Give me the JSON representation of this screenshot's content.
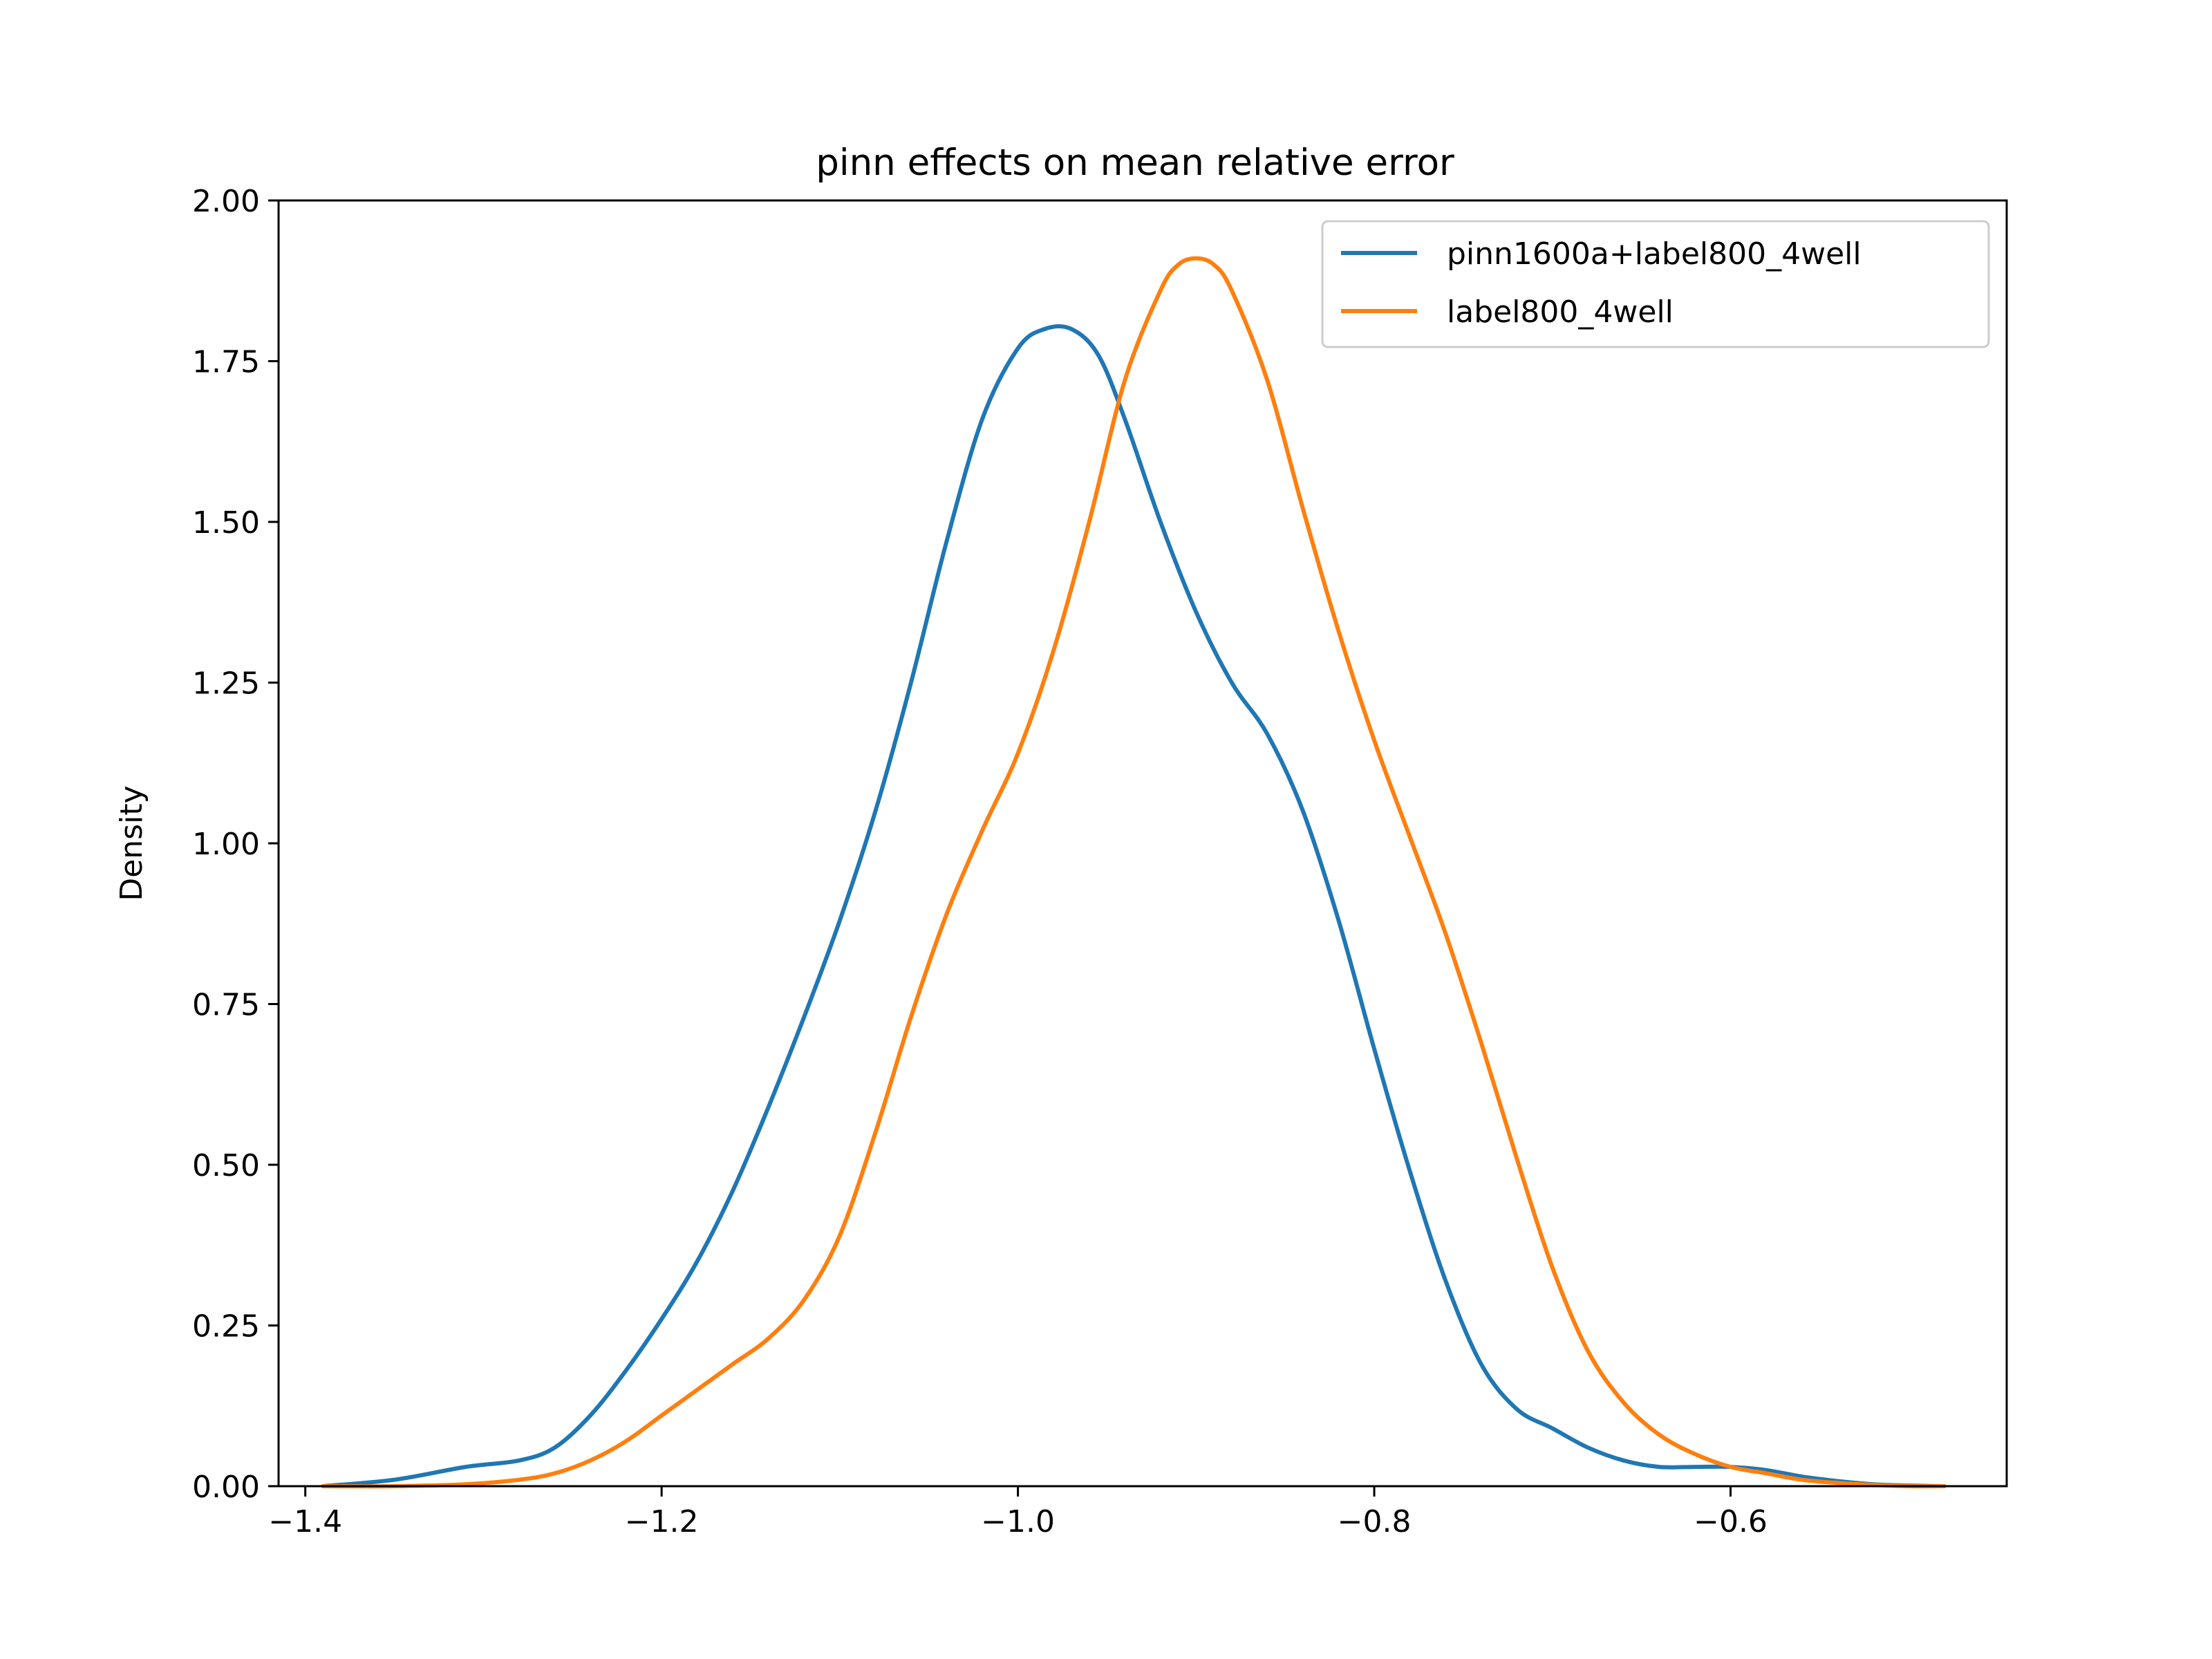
{
  "chart_data": {
    "type": "line",
    "title": "pinn effects on mean relative error",
    "xlabel": "",
    "ylabel": "Density",
    "xlim": [
      -1.415,
      -0.445
    ],
    "ylim": [
      0.0,
      2.0
    ],
    "xticks": [
      {
        "value": -1.4,
        "label": "−1.4"
      },
      {
        "value": -1.2,
        "label": "−1.2"
      },
      {
        "value": -1.0,
        "label": "−1.0"
      },
      {
        "value": -0.8,
        "label": "−0.8"
      },
      {
        "value": -0.6,
        "label": "−0.6"
      }
    ],
    "yticks": [
      {
        "value": 0.0,
        "label": "0.00"
      },
      {
        "value": 0.25,
        "label": "0.25"
      },
      {
        "value": 0.5,
        "label": "0.50"
      },
      {
        "value": 0.75,
        "label": "0.75"
      },
      {
        "value": 1.0,
        "label": "1.00"
      },
      {
        "value": 1.25,
        "label": "1.25"
      },
      {
        "value": 1.5,
        "label": "1.50"
      },
      {
        "value": 1.75,
        "label": "1.75"
      },
      {
        "value": 2.0,
        "label": "2.00"
      }
    ],
    "grid": false,
    "legend_position": "top-right",
    "series": [
      {
        "name": "pinn1600a+label800_4well",
        "color": "#1f77b4",
        "x": [
          -1.39,
          -1.35,
          -1.31,
          -1.28,
          -1.26,
          -1.24,
          -1.22,
          -1.2,
          -1.18,
          -1.16,
          -1.14,
          -1.12,
          -1.1,
          -1.08,
          -1.06,
          -1.04,
          -1.02,
          -1.0,
          -0.985,
          -0.97,
          -0.955,
          -0.94,
          -0.92,
          -0.9,
          -0.88,
          -0.86,
          -0.84,
          -0.82,
          -0.8,
          -0.78,
          -0.76,
          -0.74,
          -0.72,
          -0.7,
          -0.68,
          -0.66,
          -0.64,
          -0.62,
          -0.6,
          -0.58,
          -0.56,
          -0.54,
          -0.52,
          -0.5,
          -0.48
        ],
        "y": [
          0.0,
          0.01,
          0.03,
          0.04,
          0.06,
          0.11,
          0.18,
          0.26,
          0.35,
          0.46,
          0.59,
          0.73,
          0.88,
          1.05,
          1.25,
          1.47,
          1.66,
          1.77,
          1.8,
          1.8,
          1.76,
          1.66,
          1.5,
          1.36,
          1.25,
          1.17,
          1.05,
          0.88,
          0.68,
          0.49,
          0.32,
          0.19,
          0.12,
          0.09,
          0.06,
          0.04,
          0.03,
          0.03,
          0.03,
          0.025,
          0.015,
          0.008,
          0.003,
          0.001,
          0.0
        ]
      },
      {
        "name": "label800_4well",
        "color": "#ff7f0e",
        "x": [
          -1.39,
          -1.35,
          -1.31,
          -1.28,
          -1.26,
          -1.24,
          -1.22,
          -1.2,
          -1.18,
          -1.16,
          -1.14,
          -1.12,
          -1.1,
          -1.08,
          -1.06,
          -1.04,
          -1.02,
          -1.0,
          -0.98,
          -0.96,
          -0.94,
          -0.92,
          -0.91,
          -0.9,
          -0.89,
          -0.88,
          -0.86,
          -0.84,
          -0.82,
          -0.8,
          -0.78,
          -0.76,
          -0.74,
          -0.72,
          -0.7,
          -0.68,
          -0.66,
          -0.64,
          -0.62,
          -0.6,
          -0.58,
          -0.56,
          -0.54,
          -0.52,
          -0.5,
          -0.48
        ],
        "y": [
          0.0,
          0.0,
          0.003,
          0.01,
          0.02,
          0.04,
          0.07,
          0.11,
          0.15,
          0.19,
          0.23,
          0.29,
          0.39,
          0.55,
          0.73,
          0.89,
          1.02,
          1.14,
          1.3,
          1.5,
          1.72,
          1.86,
          1.9,
          1.91,
          1.9,
          1.86,
          1.72,
          1.52,
          1.33,
          1.16,
          1.01,
          0.86,
          0.69,
          0.51,
          0.34,
          0.21,
          0.13,
          0.08,
          0.05,
          0.03,
          0.02,
          0.01,
          0.005,
          0.002,
          0.0,
          0.0
        ]
      }
    ]
  }
}
